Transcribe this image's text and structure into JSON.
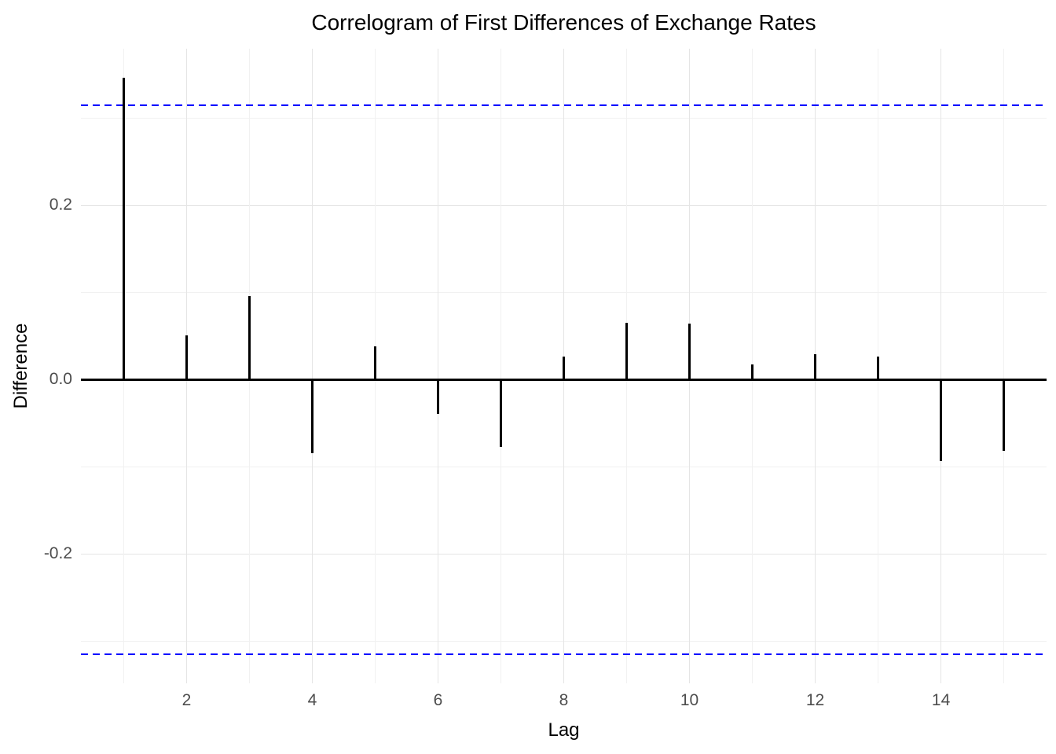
{
  "chart_data": {
    "type": "bar",
    "subtype": "acf-correlogram-lollipop",
    "title": "Correlogram of First Differences of Exchange Rates",
    "xlabel": "Lag",
    "ylabel": "Difference",
    "x": [
      1,
      2,
      3,
      4,
      5,
      6,
      7,
      8,
      9,
      10,
      11,
      12,
      13,
      14,
      15
    ],
    "values": [
      0.346,
      0.051,
      0.096,
      -0.084,
      0.038,
      -0.039,
      -0.077,
      0.027,
      0.065,
      0.064,
      0.018,
      0.029,
      0.027,
      -0.093,
      -0.082
    ],
    "confidence_bounds": {
      "upper": 0.315,
      "lower": -0.315,
      "line_style": "dashed",
      "color": "#0000FF"
    },
    "x_ticks": [
      {
        "label": "2",
        "value": 2
      },
      {
        "label": "4",
        "value": 4
      },
      {
        "label": "6",
        "value": 6
      },
      {
        "label": "8",
        "value": 8
      },
      {
        "label": "10",
        "value": 10
      },
      {
        "label": "12",
        "value": 12
      },
      {
        "label": "14",
        "value": 14
      }
    ],
    "y_ticks": [
      {
        "label": "0.2",
        "value": 0.2
      },
      {
        "label": "0.0",
        "value": 0.0
      },
      {
        "label": "-0.2",
        "value": -0.2
      }
    ],
    "y_minor_gridlines": [
      0.3,
      0.1,
      -0.1,
      -0.3
    ],
    "x_major_gridlines": [
      2,
      4,
      6,
      8,
      10,
      12,
      14
    ],
    "x_minor_gridlines": [
      1,
      3,
      5,
      7,
      9,
      11,
      13,
      15
    ],
    "xlim": [
      0.32,
      15.68
    ],
    "ylim": [
      -0.3482,
      0.3797
    ],
    "grid": true,
    "legend": false,
    "zero_line": true,
    "colors": {
      "spike": "#000000",
      "zero_line": "#000000",
      "grid_major": "#E5E5E5",
      "grid_minor": "#F1F1F1",
      "axis_text": "#4D4D4D",
      "title_text": "#000000",
      "conf_line": "#0000FF",
      "background": "#FFFFFF"
    }
  }
}
